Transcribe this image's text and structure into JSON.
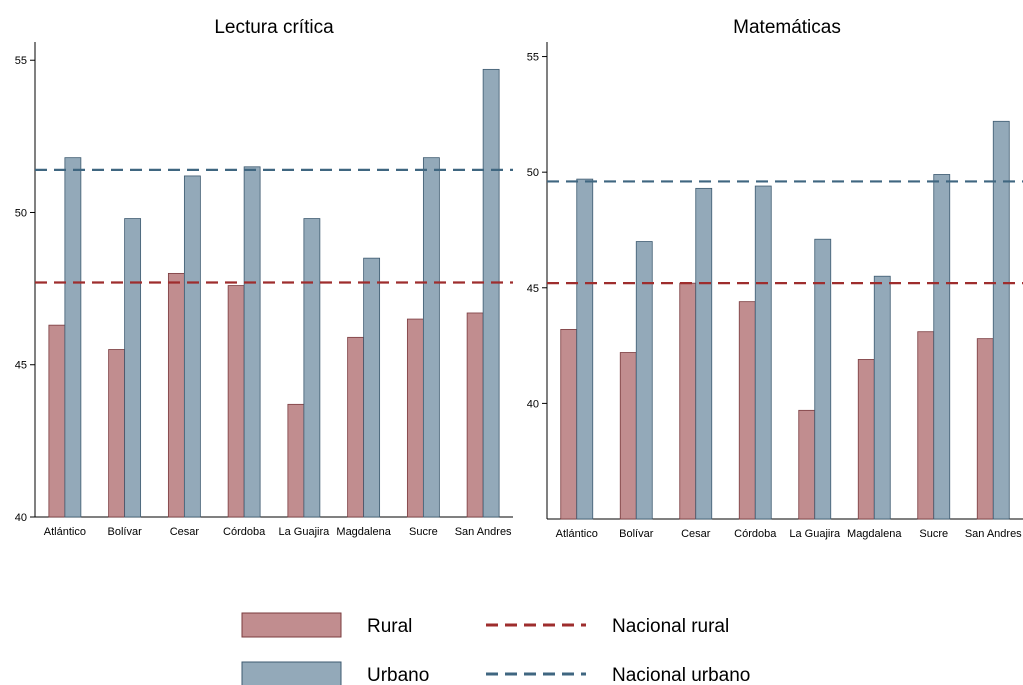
{
  "colors": {
    "rural": "#c18d8f",
    "rural_stroke": "#7a3b3e",
    "urbano": "#93a9b9",
    "urbano_stroke": "#3d5a70",
    "nacional_rural": "#9e2d2d",
    "nacional_urbano": "#3f6680"
  },
  "legend": {
    "rural": "Rural",
    "urbano": "Urbano",
    "nacional_rural": "Nacional rural",
    "nacional_urbano": "Nacional urbano"
  },
  "chart_data": [
    {
      "type": "bar",
      "title": "Lectura crítica",
      "xlabel": "",
      "ylabel": "",
      "ylim": [
        40,
        55.5
      ],
      "yticks": [
        40,
        45,
        50,
        55
      ],
      "categories": [
        "Atlántico",
        "Bolívar",
        "Cesar",
        "Córdoba",
        "La Guajira",
        "Magdalena",
        "Sucre",
        "San Andres"
      ],
      "series": [
        {
          "name": "Rural",
          "values": [
            46.3,
            45.5,
            48.0,
            47.6,
            43.7,
            45.9,
            46.5,
            46.7
          ]
        },
        {
          "name": "Urbano",
          "values": [
            51.8,
            49.8,
            51.2,
            51.5,
            49.8,
            48.5,
            51.8,
            54.7
          ]
        }
      ],
      "reference_lines": [
        {
          "name": "Nacional rural",
          "value": 47.7
        },
        {
          "name": "Nacional urbano",
          "value": 51.4
        }
      ],
      "grid": false,
      "legend_position": "bottom-center"
    },
    {
      "type": "bar",
      "title": "Matemáticas",
      "xlabel": "",
      "ylabel": "",
      "ylim": [
        35,
        55.5
      ],
      "yticks": [
        40,
        45,
        50,
        55
      ],
      "categories": [
        "Atlántico",
        "Bolívar",
        "Cesar",
        "Córdoba",
        "La Guajira",
        "Magdalena",
        "Sucre",
        "San Andres"
      ],
      "series": [
        {
          "name": "Rural",
          "values": [
            43.2,
            42.2,
            45.2,
            44.4,
            39.7,
            41.9,
            43.1,
            42.8
          ]
        },
        {
          "name": "Urbano",
          "values": [
            49.7,
            47.0,
            49.3,
            49.4,
            47.1,
            45.5,
            49.9,
            52.2
          ]
        }
      ],
      "reference_lines": [
        {
          "name": "Nacional rural",
          "value": 45.2
        },
        {
          "name": "Nacional urbano",
          "value": 49.6
        }
      ],
      "grid": false,
      "legend_position": "bottom-center"
    }
  ]
}
